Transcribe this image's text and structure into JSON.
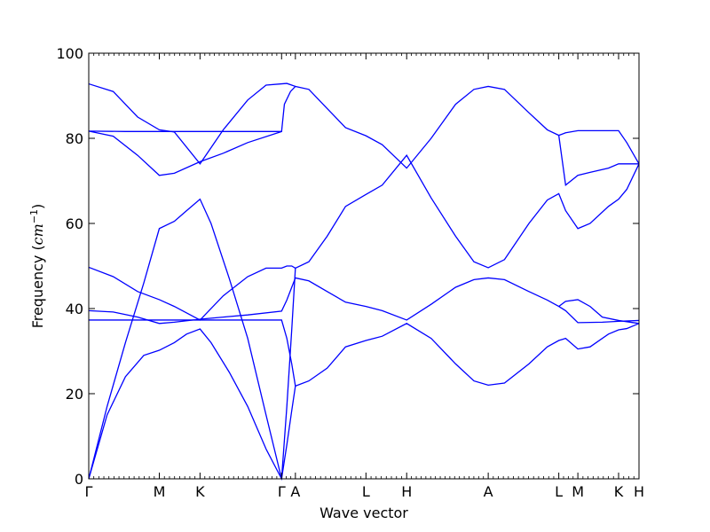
{
  "chart_data": {
    "type": "line",
    "title": "",
    "xlabel": "Wave vector",
    "ylabel_text": "Frequency (",
    "ylabel_math": "cm",
    "ylabel_exp": "−1",
    "ylabel_close": ")",
    "ylim": [
      0,
      100
    ],
    "yticks": [
      0,
      20,
      40,
      60,
      80,
      100
    ],
    "grid": false,
    "line_color": "#0000ff",
    "k_points": [
      {
        "label": "Γ",
        "x": 0.0
      },
      {
        "label": "M",
        "x": 0.577
      },
      {
        "label": "K",
        "x": 0.91
      },
      {
        "label": "Γ",
        "x": 1.577
      },
      {
        "label": "A",
        "x": 1.69
      },
      {
        "label": "L",
        "x": 2.267
      },
      {
        "label": "H",
        "x": 2.6
      },
      {
        "label": "A",
        "x": 3.267
      },
      {
        "label": "L",
        "x": 3.844
      },
      {
        "label": "M",
        "x": 4.0
      },
      {
        "label": "K",
        "x": 4.333
      },
      {
        "label": "H",
        "x": 4.5
      }
    ],
    "series": [
      {
        "values": [
          [
            0,
            0
          ],
          [
            0.15,
            15
          ],
          [
            0.3,
            24
          ],
          [
            0.45,
            29
          ],
          [
            0.577,
            30.2
          ],
          [
            0.7,
            32
          ],
          [
            0.8,
            34
          ],
          [
            0.91,
            35.2
          ],
          [
            1.0,
            32
          ],
          [
            1.15,
            25
          ],
          [
            1.3,
            17
          ],
          [
            1.45,
            7
          ],
          [
            1.577,
            0
          ],
          [
            1.62,
            8
          ],
          [
            1.66,
            16
          ],
          [
            1.69,
            21.8
          ],
          [
            1.8,
            23
          ],
          [
            1.95,
            26
          ],
          [
            2.1,
            31
          ],
          [
            2.267,
            32.5
          ],
          [
            2.4,
            33.5
          ],
          [
            2.6,
            36.5
          ],
          [
            2.8,
            33
          ],
          [
            3.0,
            27
          ],
          [
            3.15,
            23
          ],
          [
            3.267,
            22
          ],
          [
            3.4,
            22.5
          ],
          [
            3.6,
            27
          ],
          [
            3.75,
            31
          ],
          [
            3.844,
            32.5
          ],
          [
            3.9,
            33
          ],
          [
            4.0,
            30.5
          ],
          [
            4.1,
            31
          ],
          [
            4.25,
            34
          ],
          [
            4.333,
            35
          ],
          [
            4.4,
            35.3
          ],
          [
            4.5,
            36.5
          ]
        ]
      },
      {
        "values": [
          [
            0,
            0
          ],
          [
            0.15,
            17
          ],
          [
            0.3,
            32
          ],
          [
            0.45,
            46
          ],
          [
            0.577,
            58.8
          ],
          [
            0.7,
            60.5
          ],
          [
            0.8,
            63
          ],
          [
            0.91,
            65.7
          ],
          [
            1.0,
            60
          ],
          [
            1.15,
            47
          ],
          [
            1.3,
            33
          ],
          [
            1.45,
            15
          ],
          [
            1.577,
            0
          ],
          [
            1.62,
            17
          ],
          [
            1.66,
            35
          ],
          [
            1.69,
            49.5
          ],
          [
            1.8,
            51
          ],
          [
            1.95,
            57
          ],
          [
            2.1,
            64
          ],
          [
            2.267,
            66.8
          ],
          [
            2.4,
            69
          ],
          [
            2.6,
            76
          ],
          [
            2.8,
            66
          ],
          [
            3.0,
            57
          ],
          [
            3.15,
            51
          ],
          [
            3.267,
            49.6
          ],
          [
            3.4,
            51.5
          ],
          [
            3.6,
            60
          ],
          [
            3.75,
            65.5
          ],
          [
            3.844,
            67
          ],
          [
            3.9,
            63
          ],
          [
            4.0,
            58.8
          ],
          [
            4.1,
            60
          ],
          [
            4.25,
            64
          ],
          [
            4.333,
            65.7
          ],
          [
            4.4,
            68
          ],
          [
            4.5,
            74
          ]
        ]
      },
      {
        "values": [
          [
            0,
            37.3
          ],
          [
            0.3,
            37.3
          ],
          [
            0.577,
            37.3
          ],
          [
            0.91,
            37.3
          ],
          [
            1.2,
            37.3
          ],
          [
            1.577,
            37.3
          ],
          [
            1.62,
            33
          ],
          [
            1.66,
            27
          ],
          [
            1.69,
            21.8
          ]
        ]
      },
      {
        "values": [
          [
            0,
            39.5
          ],
          [
            0.2,
            39.2
          ],
          [
            0.4,
            38
          ],
          [
            0.577,
            36.5
          ],
          [
            0.7,
            36.8
          ],
          [
            0.91,
            37.5
          ],
          [
            1.1,
            38
          ],
          [
            1.3,
            38.5
          ],
          [
            1.577,
            39.4
          ],
          [
            1.62,
            42
          ],
          [
            1.66,
            45
          ],
          [
            1.69,
            47.2
          ],
          [
            1.8,
            46.5
          ],
          [
            1.95,
            44
          ],
          [
            2.1,
            41.5
          ],
          [
            2.267,
            40.5
          ],
          [
            2.4,
            39.5
          ],
          [
            2.6,
            37.3
          ],
          [
            2.8,
            41
          ],
          [
            3.0,
            45
          ],
          [
            3.15,
            46.8
          ],
          [
            3.267,
            47.2
          ],
          [
            3.4,
            46.8
          ],
          [
            3.6,
            44
          ],
          [
            3.75,
            42
          ],
          [
            3.844,
            40.5
          ],
          [
            3.9,
            39.5
          ],
          [
            4.0,
            36.7
          ],
          [
            4.2,
            36.8
          ],
          [
            4.333,
            37
          ],
          [
            4.5,
            37.2
          ]
        ]
      },
      {
        "values": [
          [
            0,
            49.7
          ],
          [
            0.2,
            47.5
          ],
          [
            0.4,
            44
          ],
          [
            0.577,
            42.1
          ],
          [
            0.7,
            40.5
          ],
          [
            0.91,
            37.3
          ],
          [
            1.1,
            43
          ],
          [
            1.3,
            47.5
          ],
          [
            1.45,
            49.5
          ],
          [
            1.577,
            49.5
          ],
          [
            1.62,
            50
          ],
          [
            1.66,
            50
          ],
          [
            1.69,
            49.5
          ]
        ]
      },
      {
        "values": [
          [
            0,
            81.7
          ],
          [
            0.3,
            81.6
          ],
          [
            0.577,
            81.6
          ],
          [
            0.91,
            81.6
          ],
          [
            1.2,
            81.6
          ],
          [
            1.577,
            81.6
          ],
          [
            1.6,
            88
          ],
          [
            1.65,
            91
          ],
          [
            1.69,
            92.2
          ],
          [
            1.8,
            91.5
          ],
          [
            1.95,
            87
          ],
          [
            2.1,
            82.5
          ],
          [
            2.267,
            80.6
          ],
          [
            2.4,
            78.5
          ],
          [
            2.6,
            73
          ],
          [
            2.8,
            80
          ],
          [
            3.0,
            88
          ],
          [
            3.15,
            91.5
          ],
          [
            3.267,
            92.2
          ],
          [
            3.4,
            91.5
          ],
          [
            3.6,
            86
          ],
          [
            3.75,
            82
          ],
          [
            3.844,
            80.7
          ],
          [
            3.9,
            81.3
          ],
          [
            4.0,
            81.8
          ],
          [
            4.2,
            81.8
          ],
          [
            4.333,
            81.8
          ],
          [
            4.4,
            79
          ],
          [
            4.5,
            74
          ]
        ]
      },
      {
        "values": [
          [
            0,
            81.7
          ],
          [
            0.2,
            80.5
          ],
          [
            0.4,
            76
          ],
          [
            0.577,
            71.3
          ],
          [
            0.7,
            71.8
          ],
          [
            0.91,
            74.5
          ],
          [
            1.1,
            76.5
          ],
          [
            1.3,
            79
          ],
          [
            1.577,
            81.6
          ]
        ]
      },
      {
        "values": [
          [
            0,
            92.8
          ],
          [
            0.2,
            91
          ],
          [
            0.4,
            85
          ],
          [
            0.577,
            82
          ],
          [
            0.7,
            81.5
          ],
          [
            0.91,
            74
          ],
          [
            1.1,
            82
          ],
          [
            1.3,
            89
          ],
          [
            1.45,
            92.5
          ],
          [
            1.577,
            92.8
          ],
          [
            1.62,
            92.9
          ],
          [
            1.66,
            92.5
          ],
          [
            1.69,
            92.2
          ]
        ]
      },
      {
        "values": [
          [
            3.844,
            80.7
          ],
          [
            3.9,
            69
          ],
          [
            4.0,
            71.3
          ],
          [
            4.1,
            72
          ],
          [
            4.25,
            73
          ],
          [
            4.333,
            74
          ],
          [
            4.5,
            74
          ]
        ]
      },
      {
        "values": [
          [
            3.844,
            40.5
          ],
          [
            3.9,
            41.7
          ],
          [
            4.0,
            42.1
          ],
          [
            4.1,
            40.5
          ],
          [
            4.2,
            38
          ],
          [
            4.333,
            37.2
          ],
          [
            4.5,
            36.5
          ]
        ]
      }
    ]
  }
}
